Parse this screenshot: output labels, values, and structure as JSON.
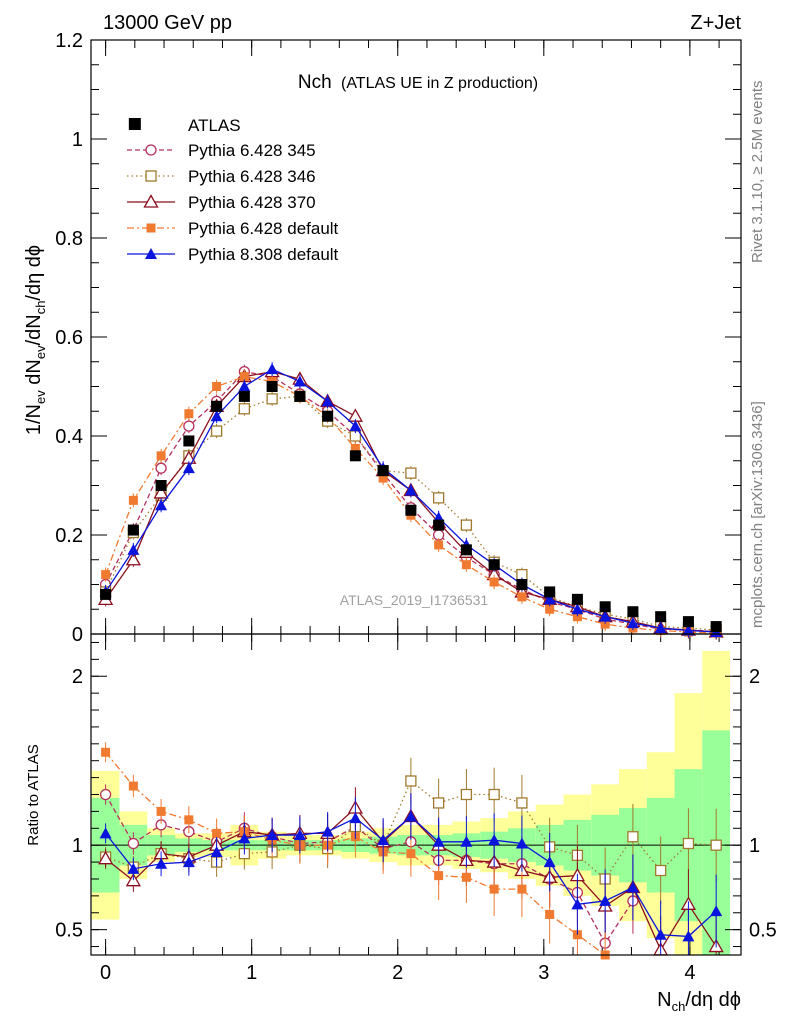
{
  "header": {
    "energy_label": "13000 GeV pp",
    "process_label": "Z+Jet",
    "side_label_top": "Rivet 3.1.10, ≥ 2.5M events",
    "side_label_bottom": "mcplots.cern.ch [arXiv:1306.3436]"
  },
  "chart_data": {
    "type": "line",
    "title": "Nch",
    "subtitle": "(ATLAS UE in Z production)",
    "analysis_tag": "ATLAS_2019_I1736531",
    "xlabel": "N_ch/dη dϕ",
    "ylabel": "1/N_ev dN_ev/dN_ch/dη dϕ",
    "ratio_ylabel": "Ratio to ATLAS",
    "xlim": [
      -0.1,
      4.35
    ],
    "ylim": [
      0,
      1.2
    ],
    "ratio_ylim": [
      0.35,
      2.25
    ],
    "x_ticks": [
      0,
      1,
      2,
      3,
      4
    ],
    "y_ticks": [
      0,
      0.2,
      0.4,
      0.6,
      0.8,
      1,
      1.2
    ],
    "y_tick_labels": [
      "0",
      "0.2",
      "0.4",
      "0.6",
      "0.8",
      "1",
      "1.2"
    ],
    "ratio_ticks": [
      0.5,
      1,
      2
    ],
    "ratio_tick_labels": [
      "0.5",
      "1",
      "2"
    ],
    "x": [
      0,
      0.19,
      0.38,
      0.57,
      0.76,
      0.95,
      1.14,
      1.33,
      1.52,
      1.71,
      1.9,
      2.09,
      2.28,
      2.47,
      2.66,
      2.85,
      3.04,
      3.23,
      3.42,
      3.61,
      3.8,
      3.99,
      4.18
    ],
    "data": {
      "name": "ATLAS",
      "values": [
        0.08,
        0.21,
        0.3,
        0.39,
        0.46,
        0.48,
        0.5,
        0.48,
        0.44,
        0.36,
        0.33,
        0.25,
        0.22,
        0.17,
        0.14,
        0.1,
        0.085,
        0.07,
        0.055,
        0.045,
        0.035,
        0.025,
        0.015
      ],
      "ratio_band_inner": [
        0.28,
        0.12,
        0.06,
        0.04,
        0.03,
        0.03,
        0.03,
        0.03,
        0.03,
        0.04,
        0.05,
        0.06,
        0.06,
        0.07,
        0.08,
        0.1,
        0.12,
        0.15,
        0.18,
        0.22,
        0.28,
        0.45,
        0.68
      ],
      "ratio_band_outer": [
        0.44,
        0.2,
        0.1,
        0.07,
        0.07,
        0.12,
        0.08,
        0.06,
        0.06,
        0.08,
        0.1,
        0.12,
        0.12,
        0.14,
        0.16,
        0.2,
        0.24,
        0.3,
        0.36,
        0.45,
        0.55,
        0.9,
        1.15
      ]
    },
    "series": [
      {
        "name": "Pythia 6.428 345",
        "color": "#b4305a",
        "dash": "5,3",
        "marker": "open-circle",
        "values": [
          0.1,
          0.21,
          0.335,
          0.42,
          0.47,
          0.53,
          0.52,
          0.485,
          0.45,
          0.4,
          0.325,
          0.255,
          0.2,
          0.155,
          0.12,
          0.09,
          0.065,
          0.05,
          0.03,
          0.02,
          0.01,
          0.008,
          0.005
        ],
        "ratio": [
          1.3,
          1.01,
          1.12,
          1.08,
          1.02,
          1.1,
          1.05,
          1.01,
          1.02,
          1.11,
          0.98,
          1.02,
          0.91,
          0.91,
          0.89,
          0.89,
          0.8,
          0.72,
          0.42,
          0.67,
          null,
          null,
          null
        ]
      },
      {
        "name": "Pythia 6.428 346",
        "color": "#a07a2e",
        "dash": "1.5,3",
        "marker": "open-square",
        "values": [
          0.085,
          0.205,
          0.28,
          0.36,
          0.41,
          0.455,
          0.475,
          0.48,
          0.43,
          0.4,
          0.33,
          0.325,
          0.275,
          0.22,
          0.145,
          0.12,
          0.075,
          0.055,
          0.04,
          0.03,
          0.015,
          0.012,
          0.008
        ],
        "ratio": [
          0.93,
          0.87,
          0.95,
          0.92,
          0.9,
          0.95,
          0.96,
          1.0,
          0.98,
          1.11,
          1.0,
          1.38,
          1.25,
          1.3,
          1.3,
          1.25,
          0.99,
          0.94,
          0.8,
          1.05,
          0.85,
          1.01,
          1.0
        ]
      },
      {
        "name": "Pythia 6.428 370",
        "color": "#8b0f1e",
        "dash": "",
        "marker": "open-triangle",
        "values": [
          0.07,
          0.15,
          0.285,
          0.355,
          0.46,
          0.52,
          0.53,
          0.515,
          0.47,
          0.44,
          0.33,
          0.29,
          0.225,
          0.165,
          0.12,
          0.085,
          0.07,
          0.055,
          0.035,
          0.025,
          0.012,
          0.008,
          0.004
        ],
        "ratio": [
          0.92,
          0.79,
          0.95,
          0.93,
          1.0,
          1.08,
          1.06,
          1.07,
          1.07,
          1.22,
          1.02,
          1.17,
          1.0,
          0.91,
          0.9,
          0.85,
          0.81,
          0.82,
          0.64,
          0.75,
          0.38,
          0.65,
          0.4
        ]
      },
      {
        "name": "Pythia 6.428 default",
        "color": "#f07a30",
        "dash": "7,3,2,3",
        "marker": "filled-square",
        "values": [
          0.12,
          0.27,
          0.36,
          0.445,
          0.5,
          0.52,
          0.51,
          0.48,
          0.44,
          0.375,
          0.315,
          0.24,
          0.18,
          0.14,
          0.105,
          0.075,
          0.05,
          0.035,
          0.02,
          0.012,
          0.007,
          0.004,
          0.002
        ],
        "ratio": [
          1.55,
          1.35,
          1.2,
          1.15,
          1.07,
          1.08,
          1.03,
          1.0,
          1.0,
          1.05,
          0.96,
          0.95,
          0.82,
          0.81,
          0.74,
          0.74,
          0.59,
          0.47,
          0.35,
          null,
          null,
          null,
          null
        ]
      },
      {
        "name": "Pythia 8.308 default",
        "color": "#0a14dc",
        "dash": "",
        "marker": "filled-triangle",
        "values": [
          0.085,
          0.17,
          0.26,
          0.335,
          0.44,
          0.5,
          0.535,
          0.51,
          0.47,
          0.42,
          0.335,
          0.29,
          0.235,
          0.18,
          0.14,
          0.1,
          0.07,
          0.05,
          0.035,
          0.022,
          0.012,
          0.007,
          0.004
        ],
        "ratio": [
          1.07,
          0.86,
          0.89,
          0.9,
          0.96,
          1.04,
          1.06,
          1.06,
          1.08,
          1.16,
          1.03,
          1.17,
          1.02,
          1.02,
          1.03,
          1.01,
          0.9,
          0.65,
          0.67,
          0.75,
          0.47,
          0.46,
          0.61
        ]
      }
    ]
  }
}
